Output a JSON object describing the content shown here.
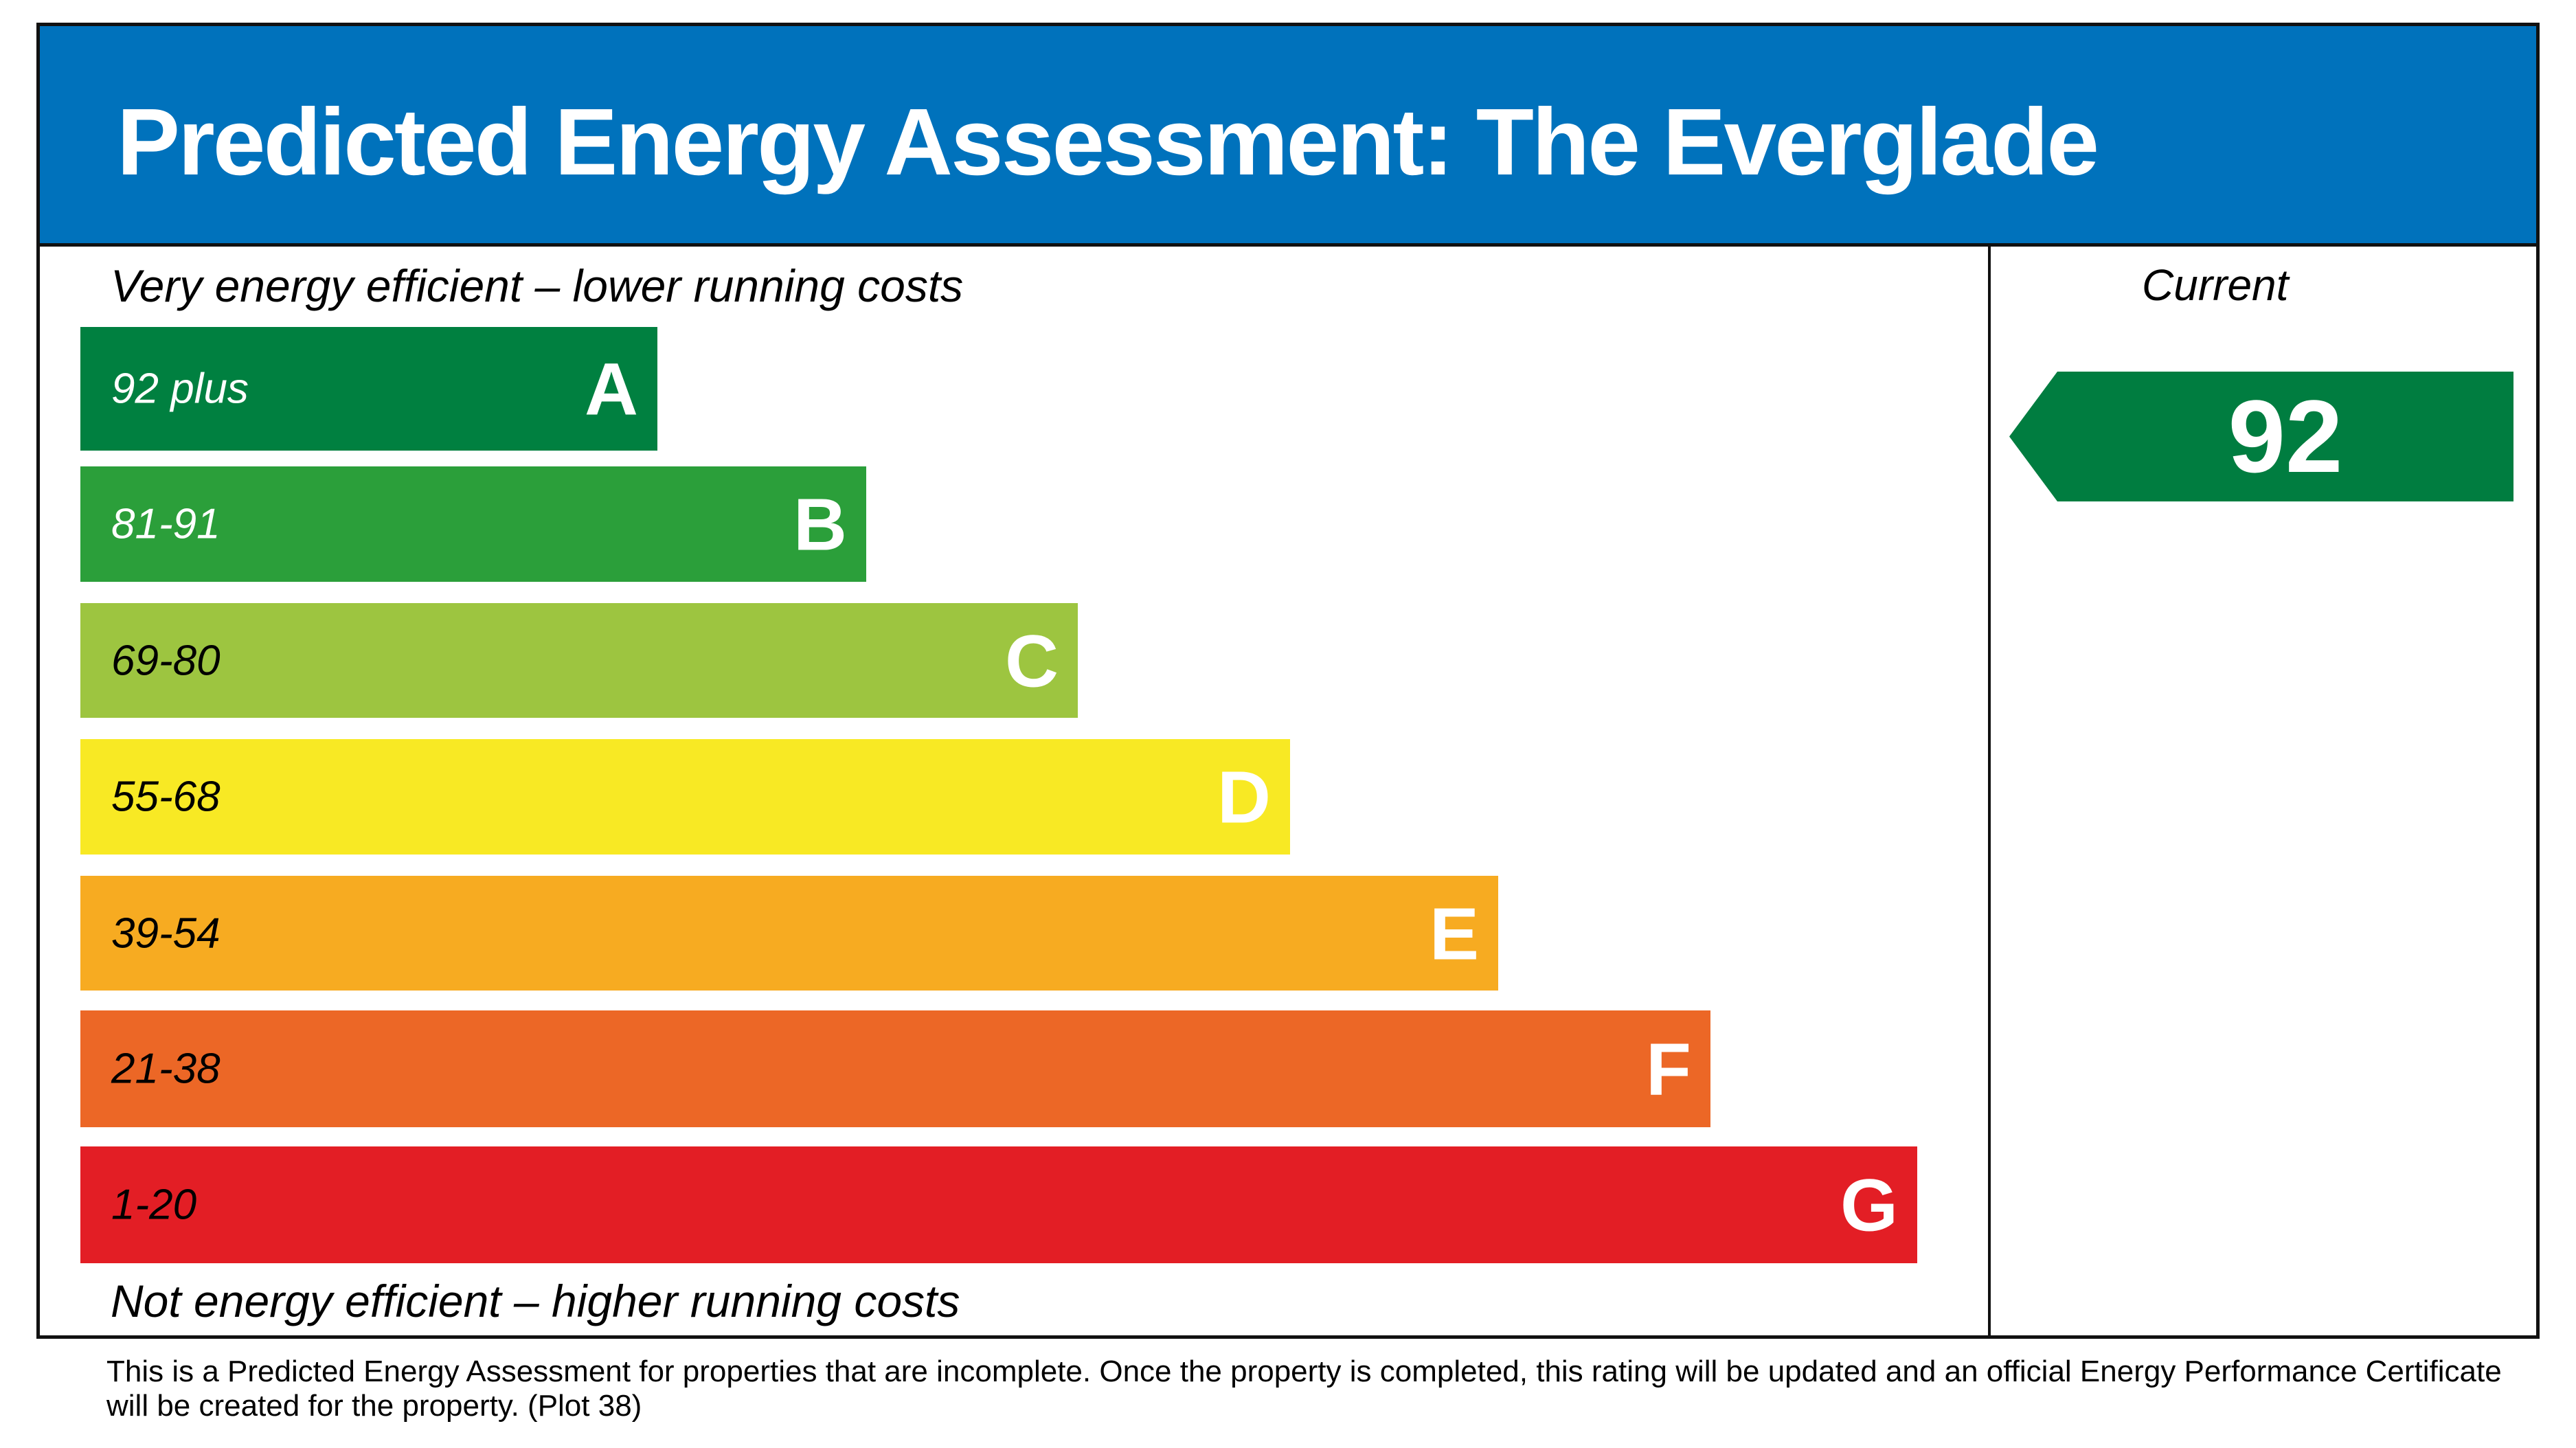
{
  "title": "Predicted Energy Assessment: The Everglade",
  "top_caption": "Very energy efficient – lower running costs",
  "bottom_caption": "Not energy efficient – higher running costs",
  "current_label": "Current",
  "footer": "This is a Predicted Energy Assessment for properties that are incomplete. Once the property is completed, this rating will be updated and an official Energy Performance Certificate will be created for the property. (Plot 38)",
  "chart_data": {
    "type": "bar",
    "categories": [
      "A",
      "B",
      "C",
      "D",
      "E",
      "F",
      "G"
    ],
    "bands": [
      {
        "letter": "A",
        "range": "92 plus",
        "color": "#008040",
        "text_color": "#ffffff"
      },
      {
        "letter": "B",
        "range": "81-91",
        "color": "#2b9f3a",
        "text_color": "#ffffff"
      },
      {
        "letter": "C",
        "range": "69-80",
        "color": "#9dc540",
        "text_color": "#000000"
      },
      {
        "letter": "D",
        "range": "55-68",
        "color": "#f8e924",
        "text_color": "#000000"
      },
      {
        "letter": "E",
        "range": "39-54",
        "color": "#f7ab21",
        "text_color": "#000000"
      },
      {
        "letter": "F",
        "range": "21-38",
        "color": "#ec6726",
        "text_color": "#000000"
      },
      {
        "letter": "G",
        "range": "1-20",
        "color": "#e31e25",
        "text_color": "#000000"
      }
    ],
    "current": {
      "value": "92",
      "band": "A",
      "color": "#007d40"
    },
    "header_color": "#0072bc"
  }
}
